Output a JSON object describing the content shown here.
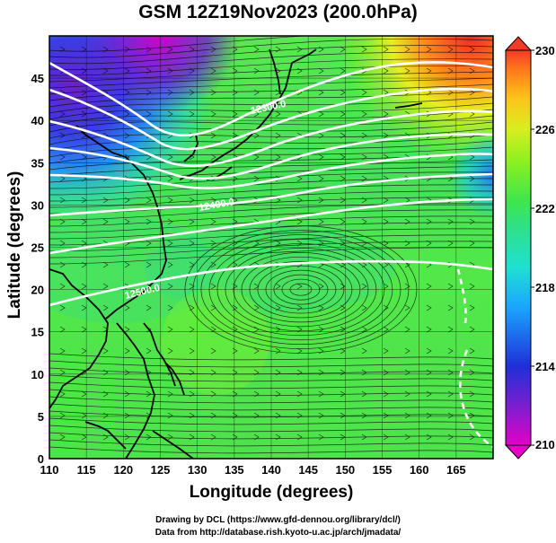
{
  "title": "GSM 12Z19Nov2023 (200.0hPa)",
  "x_axis": {
    "label": "Longitude (degrees)",
    "ticks": [
      "110",
      "115",
      "120",
      "125",
      "130",
      "135",
      "140",
      "145",
      "150",
      "155",
      "160",
      "165"
    ],
    "range": [
      110,
      170
    ]
  },
  "y_axis": {
    "label": "Latitude  (degrees)",
    "ticks": [
      "0",
      "5",
      "10",
      "15",
      "20",
      "25",
      "30",
      "35",
      "40",
      "45"
    ],
    "range": [
      0,
      50
    ]
  },
  "colorbar": {
    "labels": [
      "230",
      "226",
      "222",
      "218",
      "214",
      "210"
    ],
    "range": [
      210,
      230
    ],
    "colors": [
      "#e600c8",
      "#7a1fd0",
      "#1f2fd8",
      "#1aa6ff",
      "#20e0d0",
      "#2ee08a",
      "#3fe64a",
      "#8ef020",
      "#d8ee20",
      "#ffc21a",
      "#ff7a1a",
      "#f23a28"
    ]
  },
  "contour_labels": [
    "12300.0",
    "12400.0",
    "12500.0"
  ],
  "credits": {
    "line1": "Drawing by DCL (https://www.gfd-dennou.org/library/dcl/)",
    "line2": "Data from http://database.rish.kyoto-u.ac.jp/arch/jmadata/"
  }
}
